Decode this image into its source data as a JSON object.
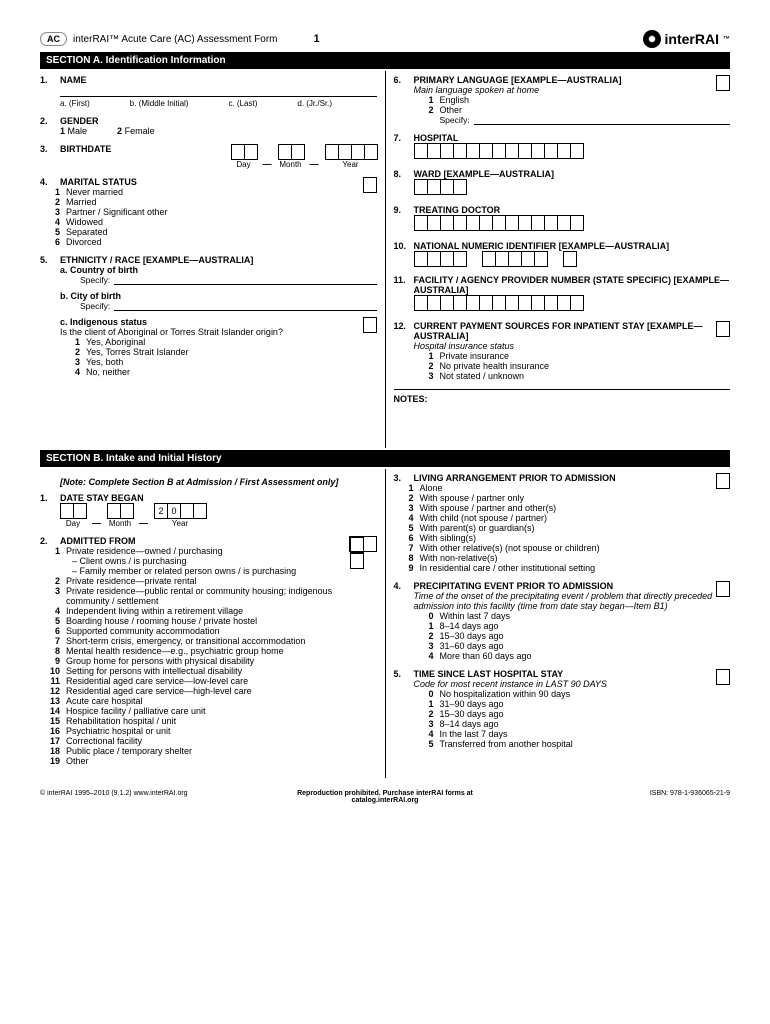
{
  "header": {
    "badge": "AC",
    "title": "interRAI™ Acute Care (AC) Assessment Form",
    "page": "1",
    "logo": "interRAI"
  },
  "sectionA": {
    "title": "SECTION A. Identification Information",
    "q1": {
      "num": "1.",
      "title": "NAME",
      "a": "a. (First)",
      "b": "b. (Middle Initial)",
      "c": "c. (Last)",
      "d": "d. (Jr./Sr.)"
    },
    "q2": {
      "num": "2.",
      "title": "GENDER",
      "opt1n": "1",
      "opt1": "Male",
      "opt2n": "2",
      "opt2": "Female"
    },
    "q3": {
      "num": "3.",
      "title": "BIRTHDATE",
      "day": "Day",
      "month": "Month",
      "year": "Year"
    },
    "q4": {
      "num": "4.",
      "title": "MARITAL STATUS",
      "opts": [
        {
          "n": "1",
          "t": "Never married"
        },
        {
          "n": "2",
          "t": "Married"
        },
        {
          "n": "3",
          "t": "Partner / Significant other"
        },
        {
          "n": "4",
          "t": "Widowed"
        },
        {
          "n": "5",
          "t": "Separated"
        },
        {
          "n": "6",
          "t": "Divorced"
        }
      ]
    },
    "q5": {
      "num": "5.",
      "title": "ETHNICITY / RACE [EXAMPLE—AUSTRALIA]",
      "a": "a. Country of birth",
      "specify": "Specify:",
      "b": "b. City of birth",
      "c": "c. Indigenous status",
      "cDesc": "Is the client of Aboriginal or Torres Strait Islander origin?",
      "opts": [
        {
          "n": "1",
          "t": "Yes, Aboriginal"
        },
        {
          "n": "2",
          "t": "Yes, Torres Strait Islander"
        },
        {
          "n": "3",
          "t": "Yes, both"
        },
        {
          "n": "4",
          "t": "No, neither"
        }
      ]
    },
    "q6": {
      "num": "6.",
      "title": "PRIMARY LANGUAGE [EXAMPLE—AUSTRALIA]",
      "desc": "Main language spoken at home",
      "opts": [
        {
          "n": "1",
          "t": "English"
        },
        {
          "n": "2",
          "t": "Other"
        }
      ],
      "specify": "Specify:"
    },
    "q7": {
      "num": "7.",
      "title": "HOSPITAL",
      "boxes": 13
    },
    "q8": {
      "num": "8.",
      "title": "WARD [EXAMPLE—AUSTRALIA]",
      "boxes": 4
    },
    "q9": {
      "num": "9.",
      "title": "TREATING DOCTOR",
      "boxes": 13
    },
    "q10": {
      "num": "10.",
      "title": "NATIONAL NUMERIC IDENTIFIER [EXAMPLE—AUSTRALIA]",
      "groups": [
        4,
        5,
        1
      ]
    },
    "q11": {
      "num": "11.",
      "title": "FACILITY / AGENCY PROVIDER NUMBER (STATE SPECIFIC) [EXAMPLE—AUSTRALIA]",
      "boxes": 13
    },
    "q12": {
      "num": "12.",
      "title": "CURRENT PAYMENT SOURCES FOR INPATIENT STAY [EXAMPLE—AUSTRALIA]",
      "desc": "Hospital insurance status",
      "opts": [
        {
          "n": "1",
          "t": "Private insurance"
        },
        {
          "n": "2",
          "t": "No private health insurance"
        },
        {
          "n": "3",
          "t": "Not stated / unknown"
        }
      ]
    },
    "notes": "NOTES:"
  },
  "sectionB": {
    "title": "SECTION B. Intake and Initial History",
    "note": "[Note: Complete Section B at Admission / First Assessment only]",
    "q1": {
      "num": "1.",
      "title": "DATE STAY BEGAN",
      "day": "Day",
      "month": "Month",
      "year": "Year",
      "pre1": "2",
      "pre2": "0"
    },
    "q2": {
      "num": "2.",
      "title": "ADMITTED FROM",
      "opts": [
        {
          "n": "1",
          "t": "Private residence—owned / purchasing",
          "sub": [
            "– Client owns / is purchasing",
            "– Family member or related person owns / is purchasing"
          ]
        },
        {
          "n": "2",
          "t": "Private residence—private rental"
        },
        {
          "n": "3",
          "t": "Private residence—public rental or community housing; indigenous community / settlement"
        },
        {
          "n": "4",
          "t": "Independent living within a retirement village"
        },
        {
          "n": "5",
          "t": "Boarding house / rooming house / private hostel"
        },
        {
          "n": "6",
          "t": "Supported community accommodation"
        },
        {
          "n": "7",
          "t": "Short-term crisis, emergency, or transitional accommodation"
        },
        {
          "n": "8",
          "t": "Mental health residence—e.g., psychiatric group home"
        },
        {
          "n": "9",
          "t": "Group home for persons with physical disability"
        },
        {
          "n": "10",
          "t": "Setting for persons with intellectual disability"
        },
        {
          "n": "11",
          "t": "Residential aged care service—low-level care"
        },
        {
          "n": "12",
          "t": "Residential aged care service—high-level care"
        },
        {
          "n": "13",
          "t": "Acute care hospital"
        },
        {
          "n": "14",
          "t": "Hospice facility / palliative care unit"
        },
        {
          "n": "15",
          "t": "Rehabilitation hospital / unit"
        },
        {
          "n": "16",
          "t": "Psychiatric hospital or unit"
        },
        {
          "n": "17",
          "t": "Correctional facility"
        },
        {
          "n": "18",
          "t": "Public place / temporary shelter"
        },
        {
          "n": "19",
          "t": "Other"
        }
      ]
    },
    "q3": {
      "num": "3.",
      "title": "LIVING ARRANGEMENT PRIOR TO ADMISSION",
      "opts": [
        {
          "n": "1",
          "t": "Alone"
        },
        {
          "n": "2",
          "t": "With spouse / partner only"
        },
        {
          "n": "3",
          "t": "With spouse / partner and other(s)"
        },
        {
          "n": "4",
          "t": "With child (not spouse / partner)"
        },
        {
          "n": "5",
          "t": "With parent(s) or guardian(s)"
        },
        {
          "n": "6",
          "t": "With sibling(s)"
        },
        {
          "n": "7",
          "t": "With other relative(s) (not spouse or children)"
        },
        {
          "n": "8",
          "t": "With non-relative(s)"
        },
        {
          "n": "9",
          "t": "In residential care / other institutional setting"
        }
      ]
    },
    "q4": {
      "num": "4.",
      "title": "PRECIPITATING EVENT PRIOR TO ADMISSION",
      "desc": "Time of the onset of the precipitating event / problem that directly preceded admission into this facility (time from date stay began—Item B1)",
      "opts": [
        {
          "n": "0",
          "t": "Within last 7 days"
        },
        {
          "n": "1",
          "t": "8–14 days ago"
        },
        {
          "n": "2",
          "t": "15–30 days ago"
        },
        {
          "n": "3",
          "t": "31–60 days ago"
        },
        {
          "n": "4",
          "t": "More than 60 days ago"
        }
      ]
    },
    "q5": {
      "num": "5.",
      "title": "TIME SINCE LAST HOSPITAL STAY",
      "desc": "Code for most recent instance in LAST 90 DAYS",
      "opts": [
        {
          "n": "0",
          "t": "No hospitalization within 90 days"
        },
        {
          "n": "1",
          "t": "31–90 days ago"
        },
        {
          "n": "2",
          "t": "15–30 days ago"
        },
        {
          "n": "3",
          "t": "8–14 days ago"
        },
        {
          "n": "4",
          "t": "In the last 7 days"
        },
        {
          "n": "5",
          "t": "Transferred from another hospital"
        }
      ]
    }
  },
  "footer": {
    "left": "© interRAI 1995–2010 (9.1.2)  www.interRAI.org",
    "center": "Reproduction prohibited. Purchase interRAI forms at catalog.interRAI.org",
    "right": "ISBN: 978-1-936065-21-9"
  }
}
